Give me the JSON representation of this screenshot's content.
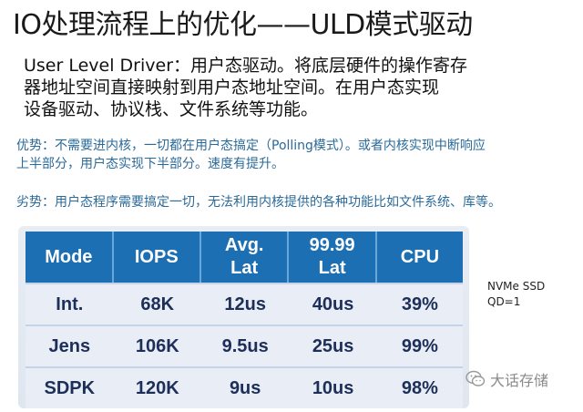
{
  "title": "IO处理流程上的优化——ULD模式驱动",
  "description": {
    "lines": [
      "User Level Driver：用户态驱动。将底层硬件的操作寄存",
      "器地址空间直接映射到用户态地址空间。在用户态实现",
      "设备驱动、协议栈、文件系统等功能。"
    ]
  },
  "pros": {
    "lines": [
      "优势：不需要进内核，一切都在用户态搞定（Polling模式）。或者内核实现中断响应",
      "上半部分，用户态实现下半部分。速度有提升。"
    ]
  },
  "cons": {
    "text": "劣势：用户态程序需要搞定一切，无法利用内核提供的各种功能比如文件系统、库等。"
  },
  "table": {
    "headers": [
      {
        "line1": "Mode",
        "line2": ""
      },
      {
        "line1": "IOPS",
        "line2": ""
      },
      {
        "line1": "Avg.",
        "line2": "Lat"
      },
      {
        "line1": "99.99",
        "line2": "Lat"
      },
      {
        "line1": "CPU",
        "line2": ""
      }
    ],
    "rows": [
      [
        "Int.",
        "68K",
        "12us",
        "40us",
        "39%"
      ],
      [
        "Jens",
        "106K",
        "9.5us",
        "25us",
        "99%"
      ],
      [
        "SDPK",
        "120K",
        "9us",
        "10us",
        "98%"
      ]
    ],
    "colors": {
      "header_bg": "#1c6fb3",
      "cell_bg": "#e9eef6",
      "cell_text": "#1d2f59"
    }
  },
  "note": {
    "line1": "NVMe SSD",
    "line2": "QD=1"
  },
  "watermark": {
    "text": "大话存储",
    "icon": "wechat-icon"
  }
}
